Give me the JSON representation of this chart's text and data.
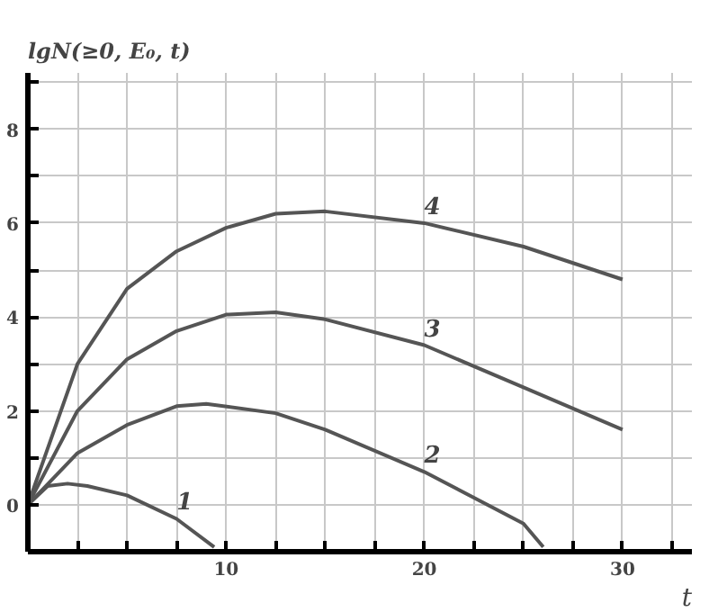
{
  "chart_data": {
    "type": "line",
    "ylabel": "lgN(≥0, E₀, t)",
    "xlabel": "t",
    "xlim": [
      0,
      33.5
    ],
    "ylim": [
      -1,
      9.2
    ],
    "xticks": [
      {
        "value": 2.5,
        "label": null
      },
      {
        "value": 5,
        "label": null
      },
      {
        "value": 7.5,
        "label": null
      },
      10,
      {
        "value": 12.5,
        "label": null
      },
      {
        "value": 15,
        "label": null
      },
      {
        "value": 17.5,
        "label": null
      },
      20,
      {
        "value": 22.5,
        "label": null
      },
      {
        "value": 25,
        "label": null
      },
      {
        "value": 27.5,
        "label": null
      },
      30,
      {
        "value": 32.5,
        "label": null
      }
    ],
    "yticks": [
      0,
      {
        "value": 1,
        "label": null
      },
      2,
      {
        "value": 3,
        "label": null
      },
      4,
      {
        "value": 5,
        "label": null
      },
      6,
      {
        "value": 7,
        "label": null
      },
      8,
      {
        "value": 9,
        "label": null
      }
    ],
    "grid": true,
    "line_style": "solid",
    "series": [
      {
        "name": "1",
        "color": "#555555",
        "x": [
          0,
          1,
          2,
          3,
          5,
          7.5,
          9.4
        ],
        "values": [
          0,
          0.4,
          0.45,
          0.4,
          0.2,
          -0.3,
          -0.9
        ]
      },
      {
        "name": "2",
        "color": "#555555",
        "x": [
          0,
          2.5,
          5,
          7.5,
          9,
          12.5,
          15,
          20,
          25,
          26
        ],
        "values": [
          0,
          1.1,
          1.7,
          2.1,
          2.15,
          1.95,
          1.6,
          0.7,
          -0.4,
          -0.9
        ]
      },
      {
        "name": "3",
        "color": "#555555",
        "x": [
          0,
          2.5,
          5,
          7.5,
          10,
          12.5,
          15,
          20,
          25,
          30
        ],
        "values": [
          0,
          2.0,
          3.1,
          3.7,
          4.05,
          4.1,
          3.95,
          3.4,
          2.5,
          1.6
        ]
      },
      {
        "name": "4",
        "color": "#555555",
        "x": [
          0,
          2.5,
          5,
          7.5,
          10,
          12.5,
          15,
          20,
          25,
          30
        ],
        "values": [
          0,
          3.0,
          4.6,
          5.4,
          5.9,
          6.2,
          6.25,
          6.0,
          5.5,
          4.8
        ]
      }
    ]
  }
}
